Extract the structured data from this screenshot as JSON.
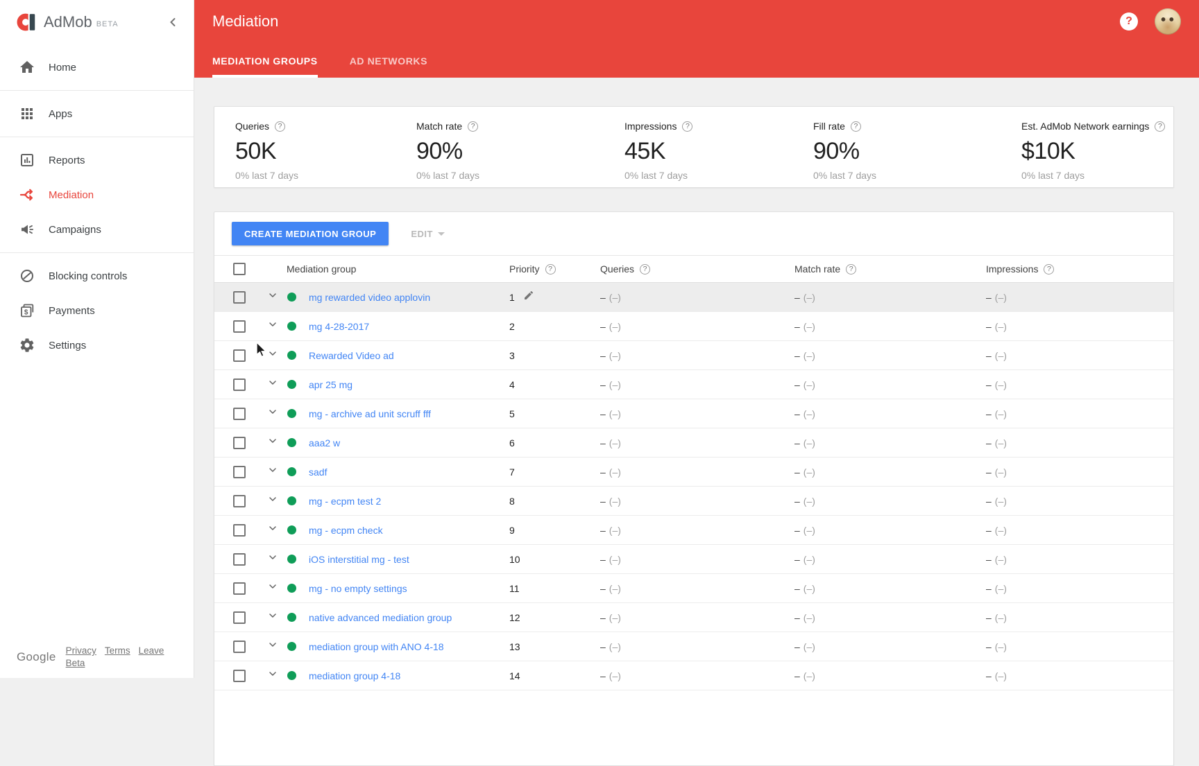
{
  "app": {
    "brand": "AdMob",
    "beta": "BETA"
  },
  "colors": {
    "accent_red": "#E8453C",
    "link_blue": "#4285F4",
    "status_green": "#0F9D58"
  },
  "sidebar": {
    "groups": [
      [
        {
          "label": "Home",
          "icon": "home-icon"
        }
      ],
      [
        {
          "label": "Apps",
          "icon": "apps-icon"
        }
      ],
      [
        {
          "label": "Reports",
          "icon": "reports-icon"
        },
        {
          "label": "Mediation",
          "icon": "mediation-icon",
          "active": true
        },
        {
          "label": "Campaigns",
          "icon": "campaigns-icon"
        }
      ],
      [
        {
          "label": "Blocking controls",
          "icon": "blocking-icon"
        },
        {
          "label": "Payments",
          "icon": "payments-icon"
        },
        {
          "label": "Settings",
          "icon": "settings-icon"
        }
      ]
    ],
    "footer": {
      "brand": "Google",
      "links": [
        "Privacy",
        "Terms",
        "Leave Beta"
      ]
    }
  },
  "header": {
    "title": "Mediation",
    "tabs": [
      {
        "label": "MEDIATION GROUPS",
        "active": true
      },
      {
        "label": "AD NETWORKS",
        "active": false
      }
    ]
  },
  "stats": [
    {
      "label": "Queries",
      "value": "50K",
      "sub": "0% last 7 days"
    },
    {
      "label": "Match rate",
      "value": "90%",
      "sub": "0% last 7 days"
    },
    {
      "label": "Impressions",
      "value": "45K",
      "sub": "0% last 7 days"
    },
    {
      "label": "Fill rate",
      "value": "90%",
      "sub": "0% last 7 days"
    },
    {
      "label": "Est. AdMob Network earnings",
      "value": "$10K",
      "sub": "0% last 7 days"
    }
  ],
  "toolbar": {
    "create_label": "CREATE MEDIATION GROUP",
    "edit_label": "EDIT"
  },
  "table": {
    "columns": [
      {
        "label": "Mediation group",
        "help": false
      },
      {
        "label": "Priority",
        "help": true
      },
      {
        "label": "Queries",
        "help": true
      },
      {
        "label": "Match rate",
        "help": true
      },
      {
        "label": "Impressions",
        "help": true
      }
    ],
    "placeholder": {
      "dash": "–",
      "paren": "(–)"
    },
    "rows": [
      {
        "name": "mg rewarded video applovin",
        "priority": "1",
        "editable": true,
        "highlighted": true
      },
      {
        "name": "mg 4-28-2017",
        "priority": "2"
      },
      {
        "name": "Rewarded Video ad",
        "priority": "3"
      },
      {
        "name": "apr 25 mg",
        "priority": "4"
      },
      {
        "name": "mg - archive ad unit scruff fff",
        "priority": "5"
      },
      {
        "name": "aaa2 w",
        "priority": "6"
      },
      {
        "name": "sadf",
        "priority": "7"
      },
      {
        "name": "mg - ecpm test 2",
        "priority": "8"
      },
      {
        "name": "mg - ecpm check",
        "priority": "9"
      },
      {
        "name": "iOS interstitial mg - test",
        "priority": "10"
      },
      {
        "name": "mg - no empty settings",
        "priority": "11"
      },
      {
        "name": "native advanced mediation group",
        "priority": "12"
      },
      {
        "name": "mediation group with ANO 4-18",
        "priority": "13"
      },
      {
        "name": "mediation group 4-18",
        "priority": "14"
      }
    ]
  }
}
